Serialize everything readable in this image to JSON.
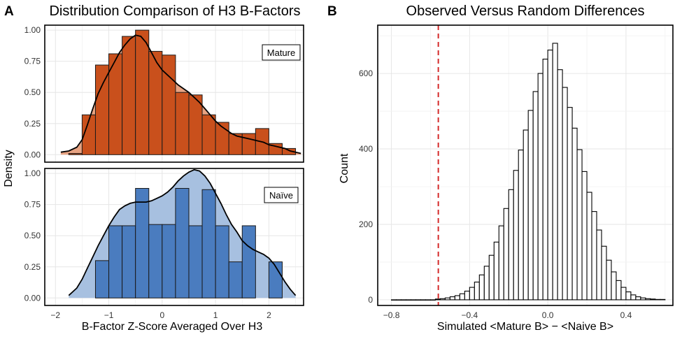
{
  "panels": {
    "a": {
      "letter": "A",
      "title": "Distribution Comparison of H3 B-Factors",
      "ylabel": "Density",
      "xlabel": "B-Factor Z-Score Averaged Over H3",
      "xticks": [
        "−2",
        "−1",
        "0",
        "1",
        "2"
      ],
      "yticks": [
        "0.00",
        "0.25",
        "0.50",
        "0.75",
        "1.00"
      ]
    },
    "b": {
      "letter": "B",
      "title": "Observed Versus Random Differences",
      "ylabel": "Count",
      "xlabel": "Simulated <Mature B> − <Naive B>",
      "xticks": [
        "−0.8",
        "−0.4",
        "0.0",
        "0.4"
      ],
      "yticks": [
        "0",
        "200",
        "400",
        "600"
      ]
    }
  },
  "colors": {
    "mature_bar": "#c9501c",
    "mature_density": "#e8a382",
    "naive_bar": "#4a7cbf",
    "naive_density": "#a7c0e0",
    "observed_line": "#d42a2a",
    "grid": "#e6e6e6"
  },
  "chart_data": [
    {
      "id": "mature",
      "type": "bar",
      "facet_label": "Mature",
      "xlim": [
        -2.2,
        2.65
      ],
      "ylim": [
        -0.06,
        1.04
      ],
      "xlabel": "B-Factor Z-Score Averaged Over H3",
      "ylabel": "Density",
      "bin_width": 0.25,
      "bins": [
        {
          "start": -1.75,
          "value": 0.01
        },
        {
          "start": -1.5,
          "value": 0.32
        },
        {
          "start": -1.25,
          "value": 0.72
        },
        {
          "start": -1.0,
          "value": 0.81
        },
        {
          "start": -0.75,
          "value": 0.95
        },
        {
          "start": -0.5,
          "value": 1.0
        },
        {
          "start": -0.25,
          "value": 0.83
        },
        {
          "start": 0.0,
          "value": 0.8
        },
        {
          "start": 0.25,
          "value": 0.5
        },
        {
          "start": 0.5,
          "value": 0.48
        },
        {
          "start": 0.75,
          "value": 0.32
        },
        {
          "start": 1.0,
          "value": 0.26
        },
        {
          "start": 1.25,
          "value": 0.17
        },
        {
          "start": 1.5,
          "value": 0.17
        },
        {
          "start": 1.75,
          "value": 0.21
        },
        {
          "start": 2.0,
          "value": 0.09
        },
        {
          "start": 2.25,
          "value": 0.05
        }
      ],
      "density": {
        "x": [
          -1.9,
          -1.75,
          -1.6,
          -1.5,
          -1.4,
          -1.3,
          -1.2,
          -1.1,
          -1.0,
          -0.9,
          -0.8,
          -0.7,
          -0.6,
          -0.5,
          -0.4,
          -0.3,
          -0.2,
          -0.1,
          0.0,
          0.1,
          0.2,
          0.3,
          0.4,
          0.5,
          0.6,
          0.7,
          0.8,
          0.9,
          1.0,
          1.1,
          1.2,
          1.3,
          1.4,
          1.5,
          1.6,
          1.7,
          1.8,
          1.9,
          2.0,
          2.1,
          2.2,
          2.3,
          2.4,
          2.5,
          2.6
        ],
        "y": [
          0.02,
          0.03,
          0.06,
          0.12,
          0.24,
          0.37,
          0.49,
          0.58,
          0.66,
          0.74,
          0.82,
          0.88,
          0.93,
          0.96,
          0.95,
          0.9,
          0.82,
          0.74,
          0.68,
          0.64,
          0.6,
          0.56,
          0.53,
          0.5,
          0.46,
          0.42,
          0.37,
          0.32,
          0.27,
          0.23,
          0.2,
          0.17,
          0.15,
          0.14,
          0.13,
          0.12,
          0.11,
          0.1,
          0.08,
          0.07,
          0.06,
          0.05,
          0.03,
          0.02,
          0.01
        ]
      }
    },
    {
      "id": "naive",
      "type": "bar",
      "facet_label": "Naïve",
      "xlim": [
        -2.2,
        2.65
      ],
      "ylim": [
        -0.06,
        1.04
      ],
      "xlabel": "B-Factor Z-Score Averaged Over H3",
      "ylabel": "Density",
      "bin_width": 0.25,
      "bins": [
        {
          "start": -1.25,
          "value": 0.3
        },
        {
          "start": -1.0,
          "value": 0.58
        },
        {
          "start": -0.75,
          "value": 0.58
        },
        {
          "start": -0.5,
          "value": 0.88
        },
        {
          "start": -0.25,
          "value": 0.59
        },
        {
          "start": 0.0,
          "value": 0.59
        },
        {
          "start": 0.25,
          "value": 0.88
        },
        {
          "start": 0.5,
          "value": 0.58
        },
        {
          "start": 0.75,
          "value": 0.87
        },
        {
          "start": 1.0,
          "value": 0.58
        },
        {
          "start": 1.25,
          "value": 0.29
        },
        {
          "start": 1.5,
          "value": 0.58
        },
        {
          "start": 1.75,
          "value": 0.0
        },
        {
          "start": 2.0,
          "value": 0.29
        }
      ],
      "density": {
        "x": [
          -1.75,
          -1.6,
          -1.5,
          -1.4,
          -1.3,
          -1.2,
          -1.1,
          -1.0,
          -0.9,
          -0.8,
          -0.7,
          -0.6,
          -0.5,
          -0.4,
          -0.3,
          -0.2,
          -0.1,
          0.0,
          0.1,
          0.2,
          0.3,
          0.4,
          0.5,
          0.6,
          0.7,
          0.8,
          0.9,
          1.0,
          1.1,
          1.2,
          1.3,
          1.4,
          1.5,
          1.6,
          1.7,
          1.8,
          1.9,
          2.0,
          2.1,
          2.2,
          2.3,
          2.4,
          2.5
        ],
        "y": [
          0.02,
          0.08,
          0.15,
          0.24,
          0.33,
          0.42,
          0.5,
          0.58,
          0.65,
          0.71,
          0.74,
          0.76,
          0.77,
          0.77,
          0.77,
          0.78,
          0.8,
          0.82,
          0.85,
          0.89,
          0.94,
          0.98,
          1.01,
          1.03,
          1.02,
          0.98,
          0.92,
          0.84,
          0.76,
          0.67,
          0.59,
          0.53,
          0.46,
          0.42,
          0.39,
          0.37,
          0.35,
          0.32,
          0.27,
          0.2,
          0.13,
          0.07,
          0.02
        ]
      }
    },
    {
      "id": "simulated",
      "type": "bar",
      "title": "Observed Versus Random Differences",
      "xlabel": "Simulated <Mature B> − <Naive B>",
      "ylabel": "Count",
      "xlim": [
        -0.87,
        0.64
      ],
      "ylim": [
        -15,
        728
      ],
      "bin_width": 0.025,
      "observed_value": -0.56,
      "bins": [
        {
          "start": -0.8,
          "value": 0
        },
        {
          "start": -0.775,
          "value": 0
        },
        {
          "start": -0.75,
          "value": 0
        },
        {
          "start": -0.725,
          "value": 0
        },
        {
          "start": -0.7,
          "value": 0
        },
        {
          "start": -0.675,
          "value": 0
        },
        {
          "start": -0.65,
          "value": 0
        },
        {
          "start": -0.625,
          "value": 0
        },
        {
          "start": -0.6,
          "value": 0
        },
        {
          "start": -0.575,
          "value": 2
        },
        {
          "start": -0.55,
          "value": 3
        },
        {
          "start": -0.525,
          "value": 5
        },
        {
          "start": -0.5,
          "value": 8
        },
        {
          "start": -0.475,
          "value": 11
        },
        {
          "start": -0.45,
          "value": 16
        },
        {
          "start": -0.425,
          "value": 23
        },
        {
          "start": -0.4,
          "value": 33
        },
        {
          "start": -0.375,
          "value": 47
        },
        {
          "start": -0.35,
          "value": 66
        },
        {
          "start": -0.325,
          "value": 89
        },
        {
          "start": -0.3,
          "value": 118
        },
        {
          "start": -0.275,
          "value": 153
        },
        {
          "start": -0.25,
          "value": 196
        },
        {
          "start": -0.225,
          "value": 242
        },
        {
          "start": -0.2,
          "value": 292
        },
        {
          "start": -0.175,
          "value": 343
        },
        {
          "start": -0.15,
          "value": 397
        },
        {
          "start": -0.125,
          "value": 450
        },
        {
          "start": -0.1,
          "value": 502
        },
        {
          "start": -0.075,
          "value": 552
        },
        {
          "start": -0.05,
          "value": 600
        },
        {
          "start": -0.025,
          "value": 638
        },
        {
          "start": 0.0,
          "value": 662
        },
        {
          "start": 0.025,
          "value": 680
        },
        {
          "start": 0.05,
          "value": 610
        },
        {
          "start": 0.075,
          "value": 563
        },
        {
          "start": 0.1,
          "value": 510
        },
        {
          "start": 0.125,
          "value": 455
        },
        {
          "start": 0.15,
          "value": 398
        },
        {
          "start": 0.175,
          "value": 340
        },
        {
          "start": 0.2,
          "value": 285
        },
        {
          "start": 0.225,
          "value": 234
        },
        {
          "start": 0.25,
          "value": 185
        },
        {
          "start": 0.275,
          "value": 142
        },
        {
          "start": 0.3,
          "value": 105
        },
        {
          "start": 0.325,
          "value": 74
        },
        {
          "start": 0.35,
          "value": 51
        },
        {
          "start": 0.375,
          "value": 33
        },
        {
          "start": 0.4,
          "value": 21
        },
        {
          "start": 0.425,
          "value": 13
        },
        {
          "start": 0.45,
          "value": 8
        },
        {
          "start": 0.475,
          "value": 5
        },
        {
          "start": 0.5,
          "value": 3
        },
        {
          "start": 0.525,
          "value": 2
        },
        {
          "start": 0.55,
          "value": 1
        },
        {
          "start": 0.575,
          "value": 1
        }
      ]
    }
  ]
}
